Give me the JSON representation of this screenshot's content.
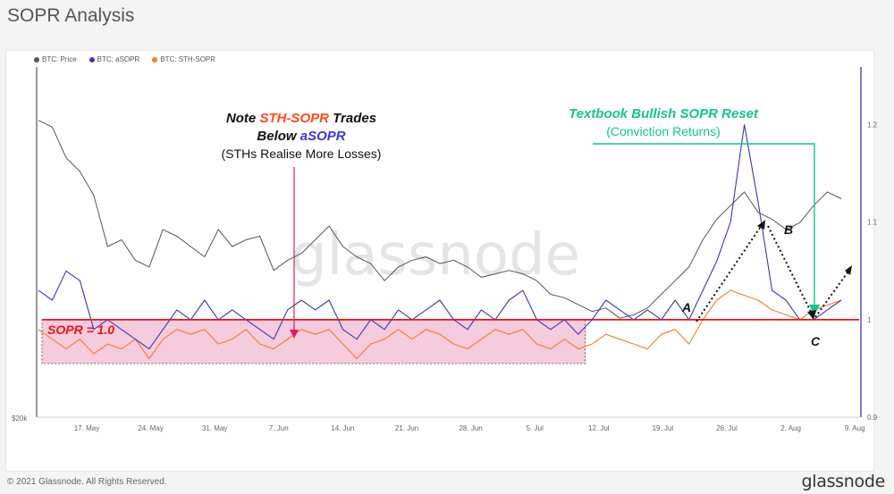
{
  "header": {
    "title": "SOPR Analysis"
  },
  "footer": {
    "copyright": "© 2021 Glassnode. All Rights Reserved.",
    "brand": "glassnode"
  },
  "watermark": "glassnode",
  "colors": {
    "price": "#555555",
    "asopr": "#3a36b5",
    "sth_sopr": "#f07d28",
    "sopr_line": "#e8141c",
    "shade": "#f3b9d1",
    "green": "#17c48a",
    "pink_arrow": "#e8146c"
  },
  "chart_data": {
    "type": "line",
    "title": "SOPR Analysis",
    "x_ticks": [
      "17. May",
      "24. May",
      "31. May",
      "7. Jun",
      "14. Jun",
      "21. Jun",
      "28. Jun",
      "5. Jul",
      "12. Jul",
      "19. Jul",
      "26. Jul",
      "2. Aug",
      "9. Aug"
    ],
    "left_axis": {
      "ticks": [
        "$20k"
      ]
    },
    "right_axis": {
      "ticks": [
        "1.2",
        "1.1",
        "1",
        "0.9"
      ],
      "range": [
        0.9,
        1.25
      ]
    },
    "legend": [
      {
        "name": "BTC: Price",
        "color": "#555555"
      },
      {
        "name": "BTC: aSOPR",
        "color": "#3a36b5"
      },
      {
        "name": "BTC: STH-SOPR",
        "color": "#f07d28"
      }
    ],
    "series": [
      {
        "name": "BTC: aSOPR",
        "axis": "right",
        "points": [
          [
            0,
            1.03
          ],
          [
            2,
            1.02
          ],
          [
            4,
            1.05
          ],
          [
            6,
            1.04
          ],
          [
            8,
            0.99
          ],
          [
            10,
            1.0
          ],
          [
            12,
            0.99
          ],
          [
            14,
            0.98
          ],
          [
            16,
            0.97
          ],
          [
            18,
            0.99
          ],
          [
            20,
            1.01
          ],
          [
            22,
            1.0
          ],
          [
            24,
            1.02
          ],
          [
            26,
            1.0
          ],
          [
            28,
            1.01
          ],
          [
            30,
            1.0
          ],
          [
            32,
            0.99
          ],
          [
            34,
            0.98
          ],
          [
            36,
            1.01
          ],
          [
            38,
            1.02
          ],
          [
            40,
            1.01
          ],
          [
            42,
            1.02
          ],
          [
            44,
            0.99
          ],
          [
            46,
            0.98
          ],
          [
            48,
            1.0
          ],
          [
            50,
            0.99
          ],
          [
            52,
            1.01
          ],
          [
            54,
            1.0
          ],
          [
            56,
            1.01
          ],
          [
            58,
            1.02
          ],
          [
            60,
            1.0
          ],
          [
            62,
            0.99
          ],
          [
            64,
            1.01
          ],
          [
            66,
            1.0
          ],
          [
            68,
            1.02
          ],
          [
            70,
            1.03
          ],
          [
            72,
            1.0
          ],
          [
            74,
            0.99
          ],
          [
            76,
            1.0
          ],
          [
            78,
            0.985
          ],
          [
            80,
            1.0
          ],
          [
            82,
            1.02
          ],
          [
            84,
            1.01
          ],
          [
            86,
            1.0
          ],
          [
            88,
            1.01
          ],
          [
            90,
            1.0
          ],
          [
            92,
            1.02
          ],
          [
            94,
            1.0
          ],
          [
            96,
            1.03
          ],
          [
            98,
            1.06
          ],
          [
            100,
            1.1
          ],
          [
            102,
            1.2
          ],
          [
            104,
            1.12
          ],
          [
            106,
            1.03
          ],
          [
            108,
            1.02
          ],
          [
            110,
            1.0
          ],
          [
            112,
            1.0
          ],
          [
            114,
            1.01
          ],
          [
            116,
            1.02
          ]
        ]
      },
      {
        "name": "BTC: STH-SOPR",
        "axis": "right",
        "points": [
          [
            0,
            0.99
          ],
          [
            2,
            0.98
          ],
          [
            4,
            0.97
          ],
          [
            6,
            0.98
          ],
          [
            8,
            0.965
          ],
          [
            10,
            0.975
          ],
          [
            12,
            0.97
          ],
          [
            14,
            0.98
          ],
          [
            16,
            0.96
          ],
          [
            18,
            0.98
          ],
          [
            20,
            0.99
          ],
          [
            22,
            0.985
          ],
          [
            24,
            0.99
          ],
          [
            26,
            0.975
          ],
          [
            28,
            0.98
          ],
          [
            30,
            0.99
          ],
          [
            32,
            0.975
          ],
          [
            34,
            0.97
          ],
          [
            36,
            0.98
          ],
          [
            38,
            0.99
          ],
          [
            40,
            0.985
          ],
          [
            42,
            0.99
          ],
          [
            44,
            0.975
          ],
          [
            46,
            0.96
          ],
          [
            48,
            0.975
          ],
          [
            50,
            0.98
          ],
          [
            52,
            0.99
          ],
          [
            54,
            0.98
          ],
          [
            56,
            0.99
          ],
          [
            58,
            0.985
          ],
          [
            60,
            0.975
          ],
          [
            62,
            0.97
          ],
          [
            64,
            0.98
          ],
          [
            66,
            0.99
          ],
          [
            68,
            0.985
          ],
          [
            70,
            0.99
          ],
          [
            72,
            0.975
          ],
          [
            74,
            0.97
          ],
          [
            76,
            0.98
          ],
          [
            78,
            0.97
          ],
          [
            80,
            0.975
          ],
          [
            82,
            0.985
          ],
          [
            84,
            0.98
          ],
          [
            86,
            0.975
          ],
          [
            88,
            0.97
          ],
          [
            90,
            0.985
          ],
          [
            92,
            0.99
          ],
          [
            94,
            0.975
          ],
          [
            96,
            1.0
          ],
          [
            98,
            1.02
          ],
          [
            100,
            1.03
          ],
          [
            102,
            1.025
          ],
          [
            104,
            1.02
          ],
          [
            106,
            1.01
          ],
          [
            108,
            1.005
          ],
          [
            110,
            1.0
          ],
          [
            112,
            1.01
          ],
          [
            114,
            1.015
          ],
          [
            116,
            1.02
          ]
        ]
      },
      {
        "name": "BTC: Price",
        "axis": "left",
        "points": [
          [
            0,
            0.87
          ],
          [
            2,
            0.85
          ],
          [
            4,
            0.76
          ],
          [
            6,
            0.72
          ],
          [
            8,
            0.65
          ],
          [
            10,
            0.5
          ],
          [
            12,
            0.52
          ],
          [
            14,
            0.46
          ],
          [
            16,
            0.44
          ],
          [
            18,
            0.55
          ],
          [
            20,
            0.53
          ],
          [
            22,
            0.5
          ],
          [
            24,
            0.47
          ],
          [
            26,
            0.55
          ],
          [
            28,
            0.5
          ],
          [
            30,
            0.52
          ],
          [
            32,
            0.53
          ],
          [
            34,
            0.43
          ],
          [
            36,
            0.46
          ],
          [
            38,
            0.48
          ],
          [
            40,
            0.52
          ],
          [
            42,
            0.56
          ],
          [
            44,
            0.5
          ],
          [
            46,
            0.47
          ],
          [
            48,
            0.45
          ],
          [
            50,
            0.4
          ],
          [
            52,
            0.44
          ],
          [
            54,
            0.46
          ],
          [
            56,
            0.47
          ],
          [
            58,
            0.45
          ],
          [
            60,
            0.46
          ],
          [
            62,
            0.44
          ],
          [
            64,
            0.41
          ],
          [
            66,
            0.42
          ],
          [
            68,
            0.43
          ],
          [
            70,
            0.42
          ],
          [
            72,
            0.4
          ],
          [
            74,
            0.36
          ],
          [
            76,
            0.35
          ],
          [
            78,
            0.33
          ],
          [
            80,
            0.31
          ],
          [
            82,
            0.32
          ],
          [
            84,
            0.29
          ],
          [
            86,
            0.3
          ],
          [
            88,
            0.32
          ],
          [
            90,
            0.36
          ],
          [
            92,
            0.4
          ],
          [
            94,
            0.44
          ],
          [
            96,
            0.52
          ],
          [
            98,
            0.58
          ],
          [
            100,
            0.62
          ],
          [
            102,
            0.66
          ],
          [
            104,
            0.6
          ],
          [
            106,
            0.58
          ],
          [
            108,
            0.55
          ],
          [
            110,
            0.57
          ],
          [
            112,
            0.62
          ],
          [
            114,
            0.66
          ],
          [
            116,
            0.64
          ]
        ]
      }
    ],
    "sopr_reference": {
      "label": "SOPR = 1.0",
      "value": 1.0
    },
    "annotations": {
      "note_line1_prefix": "Note ",
      "note_line1_highlight": "STH-SOPR",
      "note_line1_suffix": " Trades",
      "note_line2_prefix": "Below ",
      "note_line2_highlight": "aSOPR",
      "note_line3": "(STHs Realise More Losses)",
      "reset_title": "Textbook Bullish SOPR Reset",
      "reset_subtitle": "(Conviction Returns)",
      "point_a": "A",
      "point_b": "B",
      "point_c": "C"
    }
  }
}
